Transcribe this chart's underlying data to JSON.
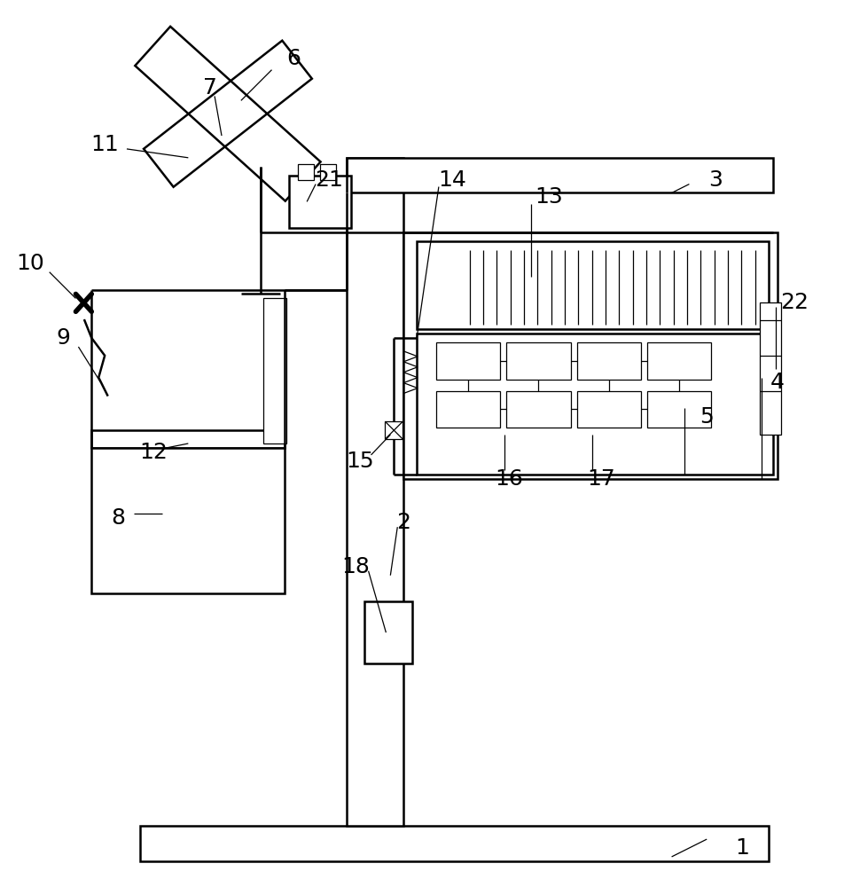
{
  "bg_color": "#ffffff",
  "line_color": "#000000",
  "lw": 1.8,
  "lw_thin": 0.9,
  "lw_thick": 3.0,
  "fig_width": 9.61,
  "fig_height": 10.0
}
